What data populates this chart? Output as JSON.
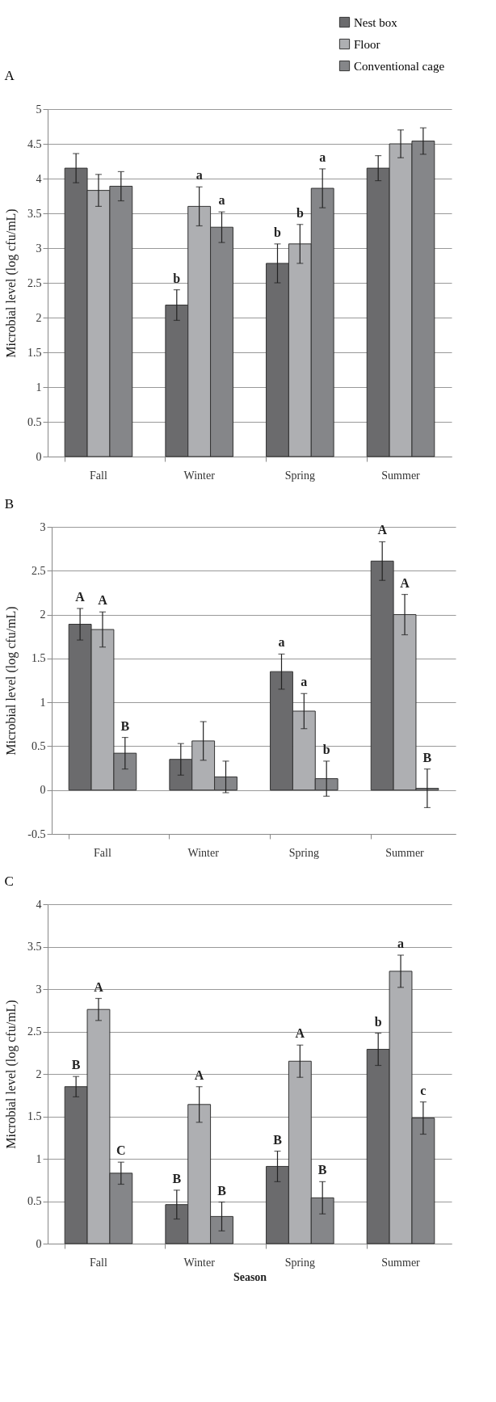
{
  "chart_data": [
    {
      "type": "bar",
      "title": "A",
      "ylabel": "Microbial level (log cfu/mL)",
      "categories": [
        "Fall",
        "Winter",
        "Spring",
        "Summer"
      ],
      "series": [
        {
          "name": "Nest box",
          "color": "#6b6b6d",
          "values": [
            4.15,
            2.18,
            2.78,
            4.15
          ],
          "errors": [
            0.21,
            0.22,
            0.28,
            0.18
          ],
          "value_labels": [
            null,
            "b",
            "b",
            null
          ]
        },
        {
          "name": "Floor",
          "color": "#aeafb2",
          "values": [
            3.83,
            3.6,
            3.06,
            4.5
          ],
          "errors": [
            0.23,
            0.28,
            0.28,
            0.2
          ],
          "value_labels": [
            null,
            "a",
            "b",
            null
          ]
        },
        {
          "name": "Conventional cage",
          "color": "#858689",
          "values": [
            3.89,
            3.3,
            3.86,
            4.54
          ],
          "errors": [
            0.21,
            0.22,
            0.28,
            0.19
          ],
          "value_labels": [
            null,
            "a",
            "a",
            null
          ]
        }
      ],
      "ylim": [
        0,
        5
      ],
      "yticks": [
        0,
        0.5,
        1,
        1.5,
        2,
        2.5,
        3,
        3.5,
        4,
        4.5,
        5
      ],
      "grid": "y",
      "legend": "top right"
    },
    {
      "type": "bar",
      "title": "B",
      "ylabel": "Microbial level (log cfu/mL)",
      "categories": [
        "Fall",
        "Winter",
        "Spring",
        "Summer"
      ],
      "series": [
        {
          "color": "#6b6b6d",
          "values": [
            1.89,
            0.35,
            1.35,
            2.61
          ],
          "errors": [
            0.18,
            0.18,
            0.2,
            0.22
          ],
          "value_labels": [
            "A",
            null,
            "a",
            "A"
          ]
        },
        {
          "color": "#aeafb2",
          "values": [
            1.83,
            0.56,
            0.9,
            2.0
          ],
          "errors": [
            0.2,
            0.22,
            0.2,
            0.23
          ],
          "value_labels": [
            "A",
            null,
            "a",
            "A"
          ]
        },
        {
          "color": "#858689",
          "values": [
            0.42,
            0.15,
            0.13,
            0.02
          ],
          "errors": [
            0.18,
            0.18,
            0.2,
            0.22
          ],
          "value_labels": [
            "B",
            null,
            "b",
            "B"
          ]
        }
      ],
      "ylim": [
        -0.5,
        3
      ],
      "yticks": [
        -0.5,
        0,
        0.5,
        1,
        1.5,
        2,
        2.5,
        3
      ],
      "grid": "y"
    },
    {
      "type": "bar",
      "title": "C",
      "ylabel": "Microbial level (log cfu/mL)",
      "xlabel": "Season",
      "categories": [
        "Fall",
        "Winter",
        "Spring",
        "Summer"
      ],
      "series": [
        {
          "color": "#6b6b6d",
          "values": [
            1.85,
            0.46,
            0.91,
            2.29
          ],
          "errors": [
            0.12,
            0.17,
            0.18,
            0.19
          ],
          "value_labels": [
            "B",
            "B",
            "B",
            "b"
          ]
        },
        {
          "color": "#aeafb2",
          "values": [
            2.76,
            1.64,
            2.15,
            3.21
          ],
          "errors": [
            0.13,
            0.21,
            0.19,
            0.19
          ],
          "value_labels": [
            "A",
            "A",
            "A",
            "a"
          ]
        },
        {
          "color": "#858689",
          "values": [
            0.83,
            0.32,
            0.54,
            1.48
          ],
          "errors": [
            0.13,
            0.17,
            0.19,
            0.19
          ],
          "value_labels": [
            "C",
            "B",
            "B",
            "c"
          ]
        }
      ],
      "ylim": [
        0,
        4
      ],
      "yticks": [
        0,
        0.5,
        1,
        1.5,
        2,
        2.5,
        3,
        3.5,
        4
      ],
      "grid": "y"
    }
  ]
}
